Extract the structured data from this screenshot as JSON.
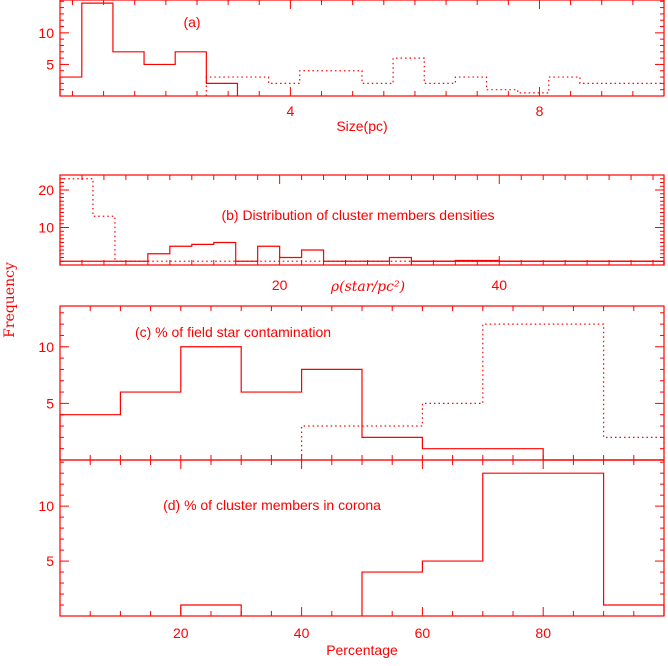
{
  "figure": {
    "ylabel": "Frequency",
    "color": "#ff0000"
  },
  "chart_data": [
    {
      "type": "bar",
      "annotation": "(a)",
      "xlabel": "Size(pc)",
      "xlim": [
        0.3,
        10.0
      ],
      "ylim": [
        0,
        15.2
      ],
      "xtick_labels": [
        {
          "value": 4,
          "label": "4"
        },
        {
          "value": 8,
          "label": "8"
        }
      ],
      "ytick_labels": [
        {
          "value": 5,
          "label": "5"
        },
        {
          "value": 10,
          "label": "10"
        }
      ],
      "series": [
        {
          "style": "solid",
          "edges": [
            0.3,
            0.65,
            1.15,
            1.65,
            2.15,
            2.65,
            3.15
          ],
          "values": [
            3,
            14.7,
            7,
            5,
            7,
            2
          ]
        },
        {
          "style": "dotted",
          "edges": [
            2.65,
            3.65,
            4.15,
            4.65,
            5.15,
            5.65,
            6.15,
            6.65,
            7.15,
            7.65,
            8.15,
            8.65,
            9.15,
            10.0
          ],
          "values": [
            3,
            2,
            4,
            4,
            2,
            6,
            2,
            3,
            1,
            0.5,
            3,
            2,
            2
          ]
        }
      ]
    },
    {
      "type": "bar",
      "annotation": "(b) Distribution of cluster members densities",
      "xlabel": "ρ(star/pc²)",
      "xlim": [
        0,
        55
      ],
      "ylim": [
        0,
        24
      ],
      "xtick_labels": [
        {
          "value": 20,
          "label": "20"
        },
        {
          "value": 40,
          "label": "40"
        }
      ],
      "ytick_labels": [
        {
          "value": 10,
          "label": "10"
        },
        {
          "value": 20,
          "label": "20"
        }
      ],
      "series": [
        {
          "style": "solid",
          "edges": [
            0,
            6,
            8,
            10,
            12,
            14,
            16,
            18,
            20,
            22,
            24,
            26,
            28,
            30,
            32,
            55
          ],
          "values": [
            1,
            1,
            3,
            5,
            5.5,
            6,
            1,
            5,
            2,
            4,
            1,
            1,
            1,
            2,
            1
          ]
        },
        {
          "style": "solid",
          "edges": [
            32,
            36,
            40,
            55
          ],
          "values": [
            1,
            1.2,
            1
          ]
        },
        {
          "style": "dotted",
          "edges": [
            0,
            1.5,
            3,
            5,
            55
          ],
          "values": [
            23,
            23,
            13,
            1
          ]
        }
      ]
    },
    {
      "type": "bar",
      "annotation": "(c) % of field star contamination",
      "xlabel": "",
      "xlim": [
        0,
        100
      ],
      "ylim": [
        0,
        13.6
      ],
      "xtick_labels": [],
      "ytick_labels": [
        {
          "value": 5,
          "label": "5"
        },
        {
          "value": 10,
          "label": "10"
        }
      ],
      "series": [
        {
          "style": "solid",
          "edges": [
            0,
            10,
            20,
            30,
            40,
            50,
            60,
            70,
            80,
            90,
            100
          ],
          "values": [
            4,
            6,
            10,
            6,
            8,
            2,
            1,
            1,
            0,
            0
          ]
        },
        {
          "style": "dotted",
          "edges": [
            40,
            50,
            60,
            70,
            80,
            90,
            100
          ],
          "values": [
            3,
            3,
            5,
            12,
            12,
            2
          ]
        }
      ]
    },
    {
      "type": "bar",
      "annotation": "(d) % of cluster members in corona",
      "xlabel": "Percentage",
      "xlim": [
        0,
        100
      ],
      "ylim": [
        0,
        14.2
      ],
      "xtick_labels": [
        {
          "value": 20,
          "label": "20"
        },
        {
          "value": 40,
          "label": "40"
        },
        {
          "value": 60,
          "label": "60"
        },
        {
          "value": 80,
          "label": "80"
        }
      ],
      "ytick_labels": [
        {
          "value": 5,
          "label": "5"
        },
        {
          "value": 10,
          "label": "10"
        }
      ],
      "series": [
        {
          "style": "solid",
          "edges": [
            20,
            30
          ],
          "values": [
            1
          ]
        },
        {
          "style": "solid",
          "edges": [
            50,
            60,
            70,
            80,
            90,
            100
          ],
          "values": [
            4,
            5,
            13,
            13,
            1
          ]
        }
      ]
    }
  ]
}
